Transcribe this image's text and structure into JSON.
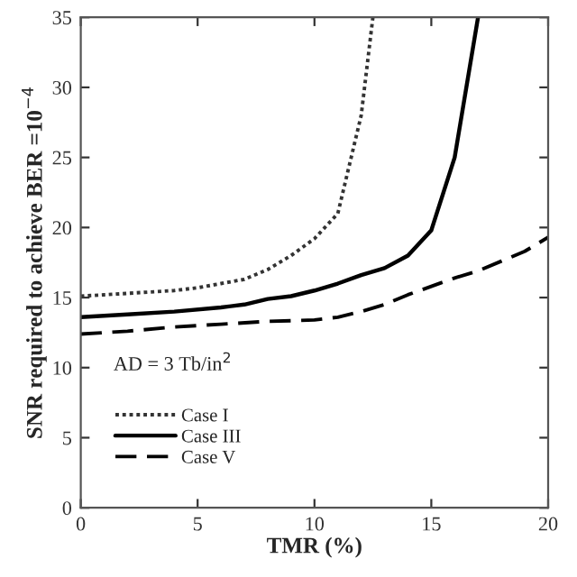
{
  "chart_data": {
    "type": "line",
    "xlabel": "TMR (%)",
    "ylabel": "SNR required to achieve BER =10$^{−4}$",
    "xlim": [
      0,
      20
    ],
    "ylim": [
      0,
      35
    ],
    "xticks": [
      0,
      5,
      10,
      15,
      20
    ],
    "yticks": [
      0,
      5,
      10,
      15,
      20,
      25,
      30,
      35
    ],
    "grid": false,
    "legend": "bottom left",
    "marker": "none",
    "annotations": [
      "AD = 3 Tb/in$^{2}$"
    ],
    "series": [
      {
        "name": "Case I",
        "color": "#333333",
        "line_style": "dotted",
        "x": [
          0,
          1,
          2,
          3,
          4,
          5,
          6,
          7,
          8,
          9,
          10,
          11,
          12,
          12.5
        ],
        "values": [
          15.1,
          15.2,
          15.3,
          15.4,
          15.5,
          15.7,
          16.0,
          16.3,
          17.0,
          18.0,
          19.2,
          21,
          28,
          35
        ]
      },
      {
        "name": "Case III",
        "color": "#000000",
        "line_style": "solid",
        "x": [
          0,
          2,
          4,
          6,
          7,
          8,
          9,
          10,
          11,
          12,
          13,
          14,
          15,
          16,
          17
        ],
        "values": [
          13.6,
          13.8,
          14.0,
          14.3,
          14.5,
          14.9,
          15.1,
          15.5,
          16.0,
          16.6,
          17.1,
          18.0,
          19.8,
          25,
          35
        ]
      },
      {
        "name": "Case V",
        "color": "#000000",
        "line_style": "dashed",
        "x": [
          0,
          2,
          4,
          6,
          8,
          10,
          11,
          12,
          13,
          14,
          15,
          16,
          17,
          18,
          19,
          20
        ],
        "values": [
          12.4,
          12.6,
          12.9,
          13.1,
          13.3,
          13.4,
          13.6,
          14.0,
          14.5,
          15.2,
          15.8,
          16.4,
          16.9,
          17.6,
          18.3,
          19.3
        ]
      }
    ]
  }
}
